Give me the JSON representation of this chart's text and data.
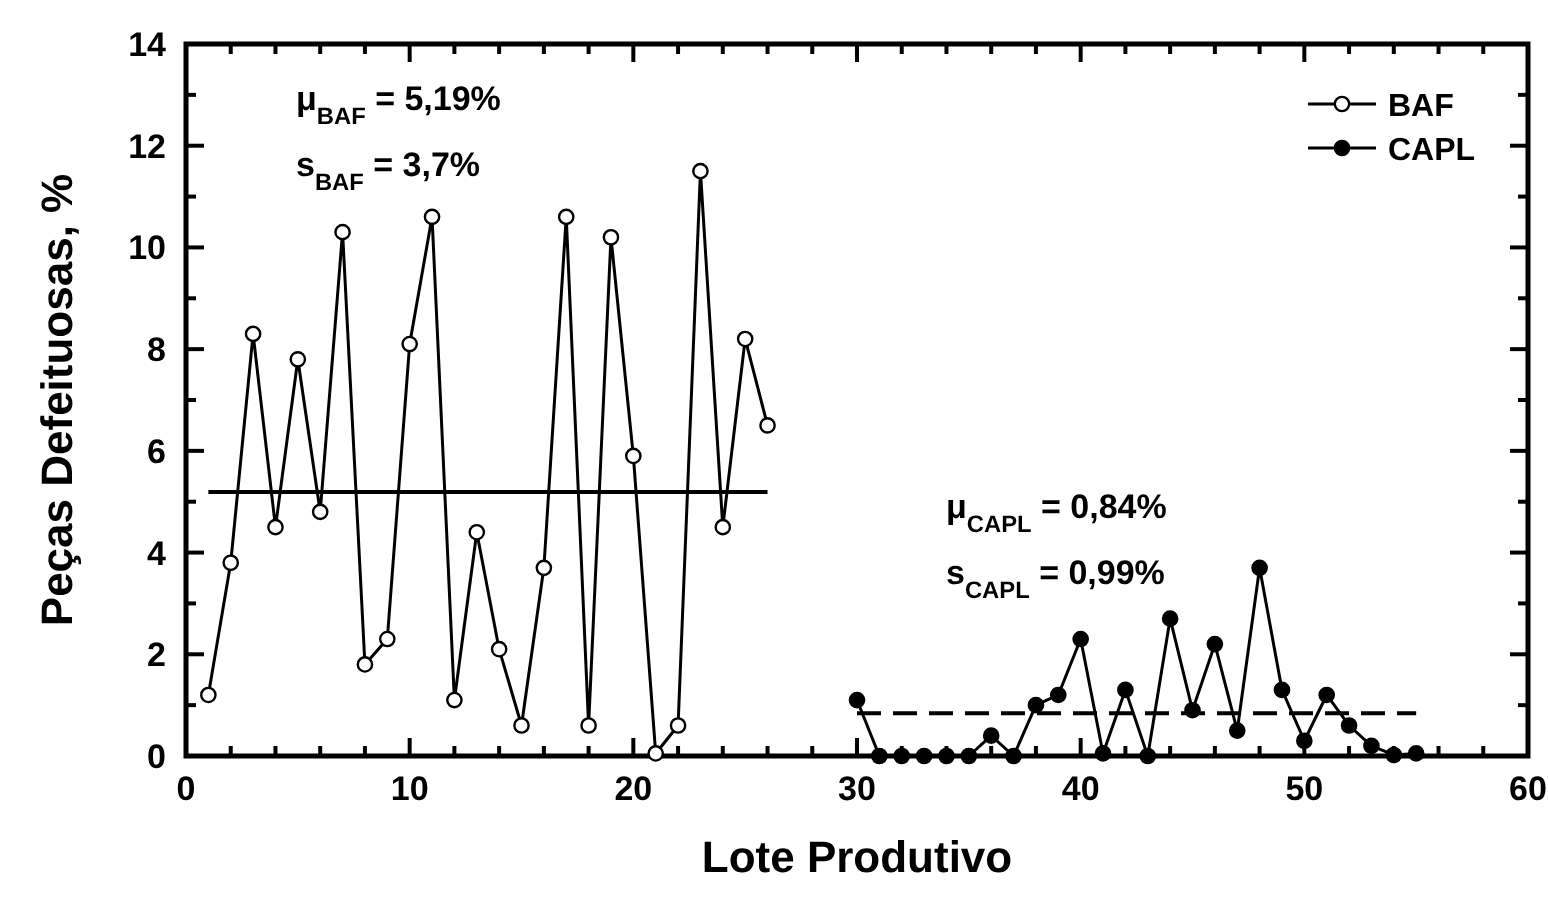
{
  "chart_data": {
    "type": "line",
    "xlabel": "Lote Produtivo",
    "ylabel": "Peças Defeituosas, %",
    "xlim": [
      0,
      60
    ],
    "ylim": [
      0,
      14
    ],
    "xticks": [
      0,
      {
        "value": 2,
        "label": null
      },
      {
        "value": 4,
        "label": null
      },
      {
        "value": 6,
        "label": null
      },
      {
        "value": 8,
        "label": null
      },
      10,
      {
        "value": 12,
        "label": null
      },
      {
        "value": 14,
        "label": null
      },
      {
        "value": 16,
        "label": null
      },
      {
        "value": 18,
        "label": null
      },
      20,
      {
        "value": 22,
        "label": null
      },
      {
        "value": 24,
        "label": null
      },
      {
        "value": 26,
        "label": null
      },
      {
        "value": 28,
        "label": null
      },
      30,
      {
        "value": 32,
        "label": null
      },
      {
        "value": 34,
        "label": null
      },
      {
        "value": 36,
        "label": null
      },
      {
        "value": 38,
        "label": null
      },
      40,
      {
        "value": 42,
        "label": null
      },
      {
        "value": 44,
        "label": null
      },
      {
        "value": 46,
        "label": null
      },
      {
        "value": 48,
        "label": null
      },
      50,
      {
        "value": 52,
        "label": null
      },
      {
        "value": 54,
        "label": null
      },
      {
        "value": 56,
        "label": null
      },
      {
        "value": 58,
        "label": null
      },
      60
    ],
    "yticks": [
      0,
      {
        "value": 1,
        "label": null
      },
      2,
      {
        "value": 3,
        "label": null
      },
      4,
      {
        "value": 5,
        "label": null
      },
      6,
      {
        "value": 7,
        "label": null
      },
      8,
      {
        "value": 9,
        "label": null
      },
      10,
      {
        "value": 11,
        "label": null
      },
      12,
      {
        "value": 13,
        "label": null
      },
      14
    ],
    "marker": "circle",
    "legend": "top right",
    "grid": false,
    "series": [
      {
        "name": "BAF",
        "color": "#ffffff",
        "x": [
          1,
          2,
          3,
          4,
          5,
          6,
          7,
          8,
          9,
          10,
          11,
          12,
          13,
          14,
          15,
          16,
          17,
          18,
          19,
          20,
          21,
          22,
          23,
          24,
          25,
          26
        ],
        "values": [
          1.2,
          3.8,
          8.3,
          4.5,
          7.8,
          4.8,
          10.3,
          1.8,
          2.3,
          8.1,
          10.6,
          1.1,
          4.4,
          2.1,
          0.6,
          3.7,
          10.6,
          0.6,
          10.2,
          5.9,
          0.05,
          0.6,
          11.5,
          4.5,
          8.2,
          6.5
        ]
      },
      {
        "name": "CAPL",
        "color": "#000000",
        "x": [
          30,
          31,
          32,
          33,
          34,
          35,
          36,
          37,
          38,
          39,
          40,
          41,
          42,
          43,
          44,
          45,
          46,
          47,
          48,
          49,
          50,
          51,
          52,
          53,
          54,
          55
        ],
        "values": [
          1.1,
          0,
          0,
          0,
          0,
          0,
          0.4,
          0,
          1.0,
          1.2,
          2.3,
          0.05,
          1.3,
          0,
          2.7,
          0.9,
          2.2,
          0.5,
          3.7,
          1.3,
          0.3,
          1.2,
          0.6,
          0.2,
          0.02,
          0.05
        ]
      },
      {
        "type": "line",
        "marker": "none",
        "line_style": "solid",
        "color": "#000000",
        "x": [
          1,
          26
        ],
        "values": [
          5.19,
          5.19
        ]
      },
      {
        "type": "line",
        "marker": "none",
        "line_style": "dashed",
        "color": "#000000",
        "x": [
          30,
          55
        ],
        "values": [
          0.84,
          0.84
        ]
      }
    ],
    "annotations": [
      "μ$_{BAF}$ = 5,19%",
      "s$_{BAF}$ = 3,7%",
      "μ$_{CAPL}$ = 0,84%",
      "s$_{CAPL}$ = 0,99%"
    ]
  }
}
